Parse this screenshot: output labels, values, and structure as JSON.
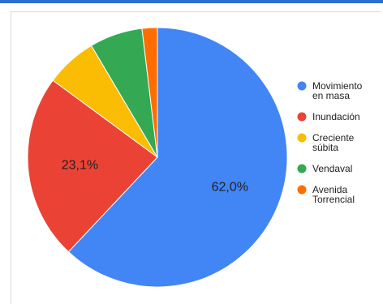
{
  "chart_data": {
    "type": "pie",
    "title": "",
    "categories": [
      "Movimiento en masa",
      "Inundación",
      "Creciente súbita",
      "Vendaval",
      "Avenida Torrencial"
    ],
    "values": [
      62.0,
      23.1,
      6.4,
      6.6,
      1.9
    ],
    "colors": [
      "#4285f4",
      "#ea4335",
      "#fbbc04",
      "#34a853",
      "#ff6d01"
    ],
    "data_labels": [
      "62,0%",
      "23,1%",
      "",
      "",
      ""
    ],
    "legend_lines": [
      [
        "Movimiento",
        "en masa"
      ],
      [
        "Inundación"
      ],
      [
        "Creciente",
        "súbita"
      ],
      [
        "Vendaval"
      ],
      [
        "Avenida",
        "Torrencial"
      ]
    ],
    "legend_position": "right"
  }
}
